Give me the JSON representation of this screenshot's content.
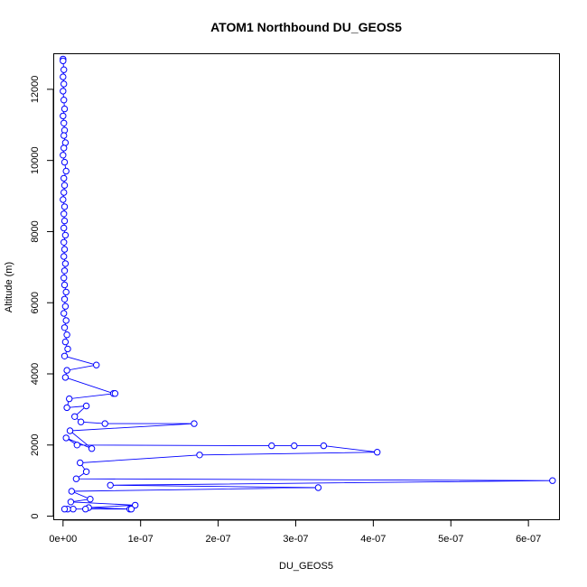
{
  "chart_data": {
    "type": "line",
    "title": "ATOM1 Northbound DU_GEOS5",
    "xlabel": "DU_GEOS5",
    "ylabel": "Altitude (m)",
    "xlim": [
      -1.2e-08,
      6.4e-07
    ],
    "ylim": [
      -100,
      13000
    ],
    "x_ticks": [
      {
        "value": 0,
        "label": "0e+00"
      },
      {
        "value": 1e-07,
        "label": "1e-07"
      },
      {
        "value": 2e-07,
        "label": "2e-07"
      },
      {
        "value": 3e-07,
        "label": "3e-07"
      },
      {
        "value": 4e-07,
        "label": "4e-07"
      },
      {
        "value": 5e-07,
        "label": "5e-07"
      },
      {
        "value": 6e-07,
        "label": "6e-07"
      }
    ],
    "y_ticks": [
      {
        "value": 0,
        "label": "0"
      },
      {
        "value": 2000,
        "label": "2000"
      },
      {
        "value": 4000,
        "label": "4000"
      },
      {
        "value": 6000,
        "label": "6000"
      },
      {
        "value": 8000,
        "label": "8000"
      },
      {
        "value": 10000,
        "label": "10000"
      },
      {
        "value": 12000,
        "label": "12000"
      }
    ],
    "grid": false,
    "legend": "none",
    "series": [
      {
        "color": "#0000ff",
        "marker": "open-circle",
        "points": [
          [
            0.0,
            12850
          ],
          [
            0.0,
            12800
          ],
          [
            1e-09,
            12550
          ],
          [
            0.0,
            12350
          ],
          [
            1e-09,
            12150
          ],
          [
            0.0,
            11950
          ],
          [
            1e-09,
            11700
          ],
          [
            2e-09,
            11450
          ],
          [
            0.0,
            11250
          ],
          [
            1e-09,
            11050
          ],
          [
            2e-09,
            10850
          ],
          [
            1e-09,
            10700
          ],
          [
            3e-09,
            10500
          ],
          [
            1e-09,
            10350
          ],
          [
            0.0,
            10150
          ],
          [
            2e-09,
            9950
          ],
          [
            4e-09,
            9700
          ],
          [
            1e-09,
            9500
          ],
          [
            2e-09,
            9300
          ],
          [
            1e-09,
            9100
          ],
          [
            0.0,
            8900
          ],
          [
            2e-09,
            8700
          ],
          [
            1e-09,
            8500
          ],
          [
            2e-09,
            8300
          ],
          [
            1e-09,
            8100
          ],
          [
            3e-09,
            7900
          ],
          [
            1e-09,
            7700
          ],
          [
            2e-09,
            7500
          ],
          [
            1e-09,
            7300
          ],
          [
            3e-09,
            7100
          ],
          [
            2e-09,
            6900
          ],
          [
            1e-09,
            6700
          ],
          [
            2e-09,
            6500
          ],
          [
            4e-09,
            6300
          ],
          [
            2e-09,
            6100
          ],
          [
            3e-09,
            5900
          ],
          [
            1e-09,
            5700
          ],
          [
            4e-09,
            5500
          ],
          [
            2e-09,
            5300
          ],
          [
            5e-09,
            5100
          ],
          [
            3e-09,
            4900
          ],
          [
            6e-09,
            4700
          ],
          [
            2e-09,
            4500
          ],
          [
            4.3e-08,
            4250
          ],
          [
            5e-09,
            4100
          ],
          [
            3e-09,
            3900
          ],
          [
            6.5e-08,
            3450
          ],
          [
            6.7e-08,
            3450
          ],
          [
            8e-09,
            3300
          ],
          [
            5e-09,
            3050
          ],
          [
            3e-08,
            3100
          ],
          [
            1.5e-08,
            2800
          ],
          [
            2.3e-08,
            2650
          ],
          [
            5.4e-08,
            2600
          ],
          [
            1.69e-07,
            2600
          ],
          [
            9e-09,
            2400
          ],
          [
            3.7e-08,
            1900
          ],
          [
            4e-09,
            2200
          ],
          [
            1.8e-08,
            2000
          ],
          [
            2.69e-07,
            1980
          ],
          [
            2.98e-07,
            1980
          ],
          [
            3.36e-07,
            1980
          ],
          [
            4.05e-07,
            1800
          ],
          [
            1.76e-07,
            1720
          ],
          [
            2.2e-08,
            1500
          ],
          [
            3e-08,
            1250
          ],
          [
            1.7e-08,
            1050
          ],
          [
            6.31e-07,
            1000
          ],
          [
            6.1e-08,
            870
          ],
          [
            3.29e-07,
            800
          ],
          [
            1.1e-08,
            700
          ],
          [
            3.5e-08,
            480
          ],
          [
            1e-08,
            400
          ],
          [
            9.3e-08,
            310
          ],
          [
            3.3e-08,
            240
          ],
          [
            8.6e-08,
            200
          ],
          [
            8.8e-08,
            200
          ],
          [
            2.9e-08,
            200
          ],
          [
            1.3e-08,
            200
          ],
          [
            6e-09,
            200
          ],
          [
            2e-09,
            200
          ]
        ]
      }
    ]
  }
}
